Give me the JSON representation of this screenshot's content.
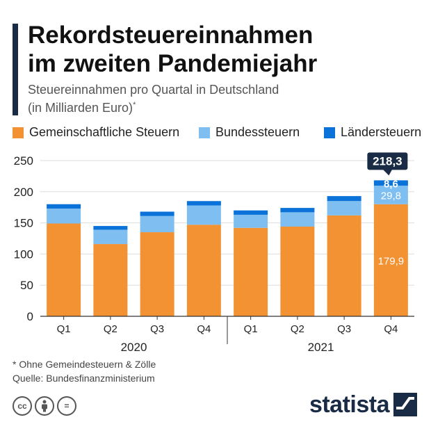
{
  "header": {
    "title_line1": "Rekordsteuereinnahmen",
    "title_line2": "im zweiten Pandemiejahr",
    "subtitle_line1": "Steuereinnahmen pro Quartal in Deutschland",
    "subtitle_line2": "(in Milliarden Euro)",
    "subtitle_mark": "*"
  },
  "colors": {
    "gemeinschaft": "#f39233",
    "bund": "#7fbef0",
    "laender": "#0a72d8",
    "callout": "#1a2b45",
    "grid": "#dddddd",
    "axis": "#333333"
  },
  "chart_data": {
    "type": "bar",
    "stacked": true,
    "categories": [
      "Q1",
      "Q2",
      "Q3",
      "Q4",
      "Q1",
      "Q2",
      "Q3",
      "Q4"
    ],
    "groups": [
      {
        "label": "2020",
        "categories": [
          0,
          1,
          2,
          3
        ]
      },
      {
        "label": "2021",
        "categories": [
          4,
          5,
          6,
          7
        ]
      }
    ],
    "series": [
      {
        "name": "Gemeinschaftliche Steuern",
        "values": [
          149,
          116,
          135,
          147,
          142,
          144,
          162,
          179.9
        ]
      },
      {
        "name": "Bundessteuern",
        "values": [
          24,
          23,
          26,
          31,
          21,
          23,
          23,
          29.8
        ]
      },
      {
        "name": "Ländersteuern",
        "values": [
          7,
          6,
          7,
          7,
          7,
          7,
          8,
          8.6
        ]
      }
    ],
    "data_labels": [
      {
        "category": 7,
        "series": 0,
        "text": "179,9"
      },
      {
        "category": 7,
        "series": 1,
        "text": "29,8"
      },
      {
        "category": 7,
        "series": 2,
        "text": "8,6"
      }
    ],
    "total_callout": {
      "category": 7,
      "value": 218.3,
      "text": "218,3"
    },
    "yticks": [
      0,
      50,
      100,
      150,
      200,
      250
    ],
    "ytick_labels": [
      "0",
      "50",
      "100",
      "150",
      "200",
      "250"
    ],
    "ylim": [
      0,
      250
    ],
    "grid": true,
    "legend_position": "top"
  },
  "footer": {
    "note": "* Ohne Gemeindesteuern & Zölle",
    "source": "Quelle: Bundesfinanzministerium",
    "brand": "statista",
    "license_icons": [
      "cc-icon",
      "by-icon",
      "nd-icon"
    ],
    "license_labels": [
      "cc",
      "",
      "="
    ]
  }
}
